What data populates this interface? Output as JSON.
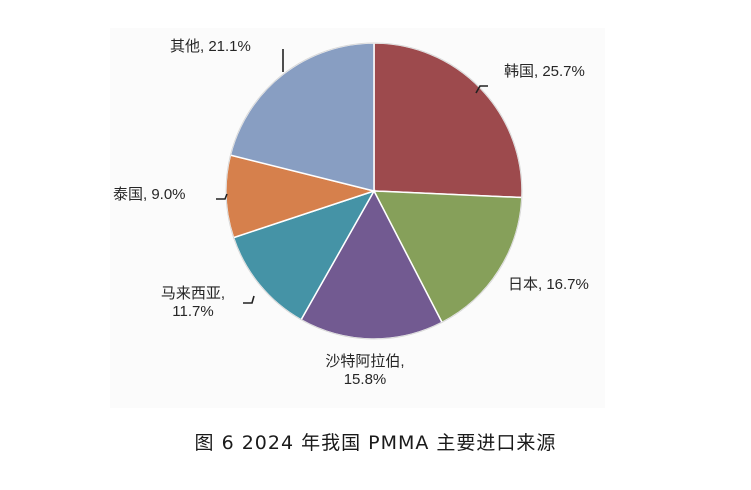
{
  "chart_data": {
    "type": "pie",
    "title": "",
    "categories": [
      "韩国",
      "日本",
      "沙特阿拉伯",
      "马来西亚",
      "泰国",
      "其他"
    ],
    "values": [
      25.7,
      16.7,
      15.8,
      11.7,
      9.0,
      21.1
    ],
    "unit": "%",
    "colors": [
      "#9d4a4d",
      "#86a05a",
      "#725a91",
      "#4593a6",
      "#d6804c",
      "#889ec2"
    ],
    "start_angle_deg": 0,
    "direction": "clockwise",
    "labels": [
      "韩国, 25.7%",
      "日本, 16.7%",
      "沙特阿拉伯, 15.8%",
      "马来西亚, 11.7%",
      "泰国, 9.0%",
      "其他, 21.1%"
    ],
    "legend": "none"
  },
  "labels": {
    "korea": "韩国, 25.7%",
    "japan": "日本, 16.7%",
    "saudi_line1": "沙特阿拉伯,",
    "saudi_line2": "15.8%",
    "malaysia_line1": "马来西亚,",
    "malaysia_line2": "11.7%",
    "thailand": "泰国, 9.0%",
    "other": "其他, 21.1%"
  },
  "caption": "图 6  2024 年我国 PMMA 主要进口来源"
}
